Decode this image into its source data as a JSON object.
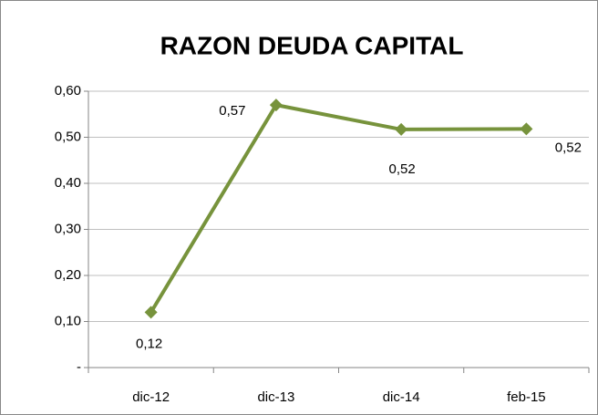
{
  "chart_data": {
    "type": "line",
    "title": "RAZON DEUDA CAPITAL",
    "categories": [
      "dic-12",
      "dic-13",
      "dic-14",
      "feb-15"
    ],
    "values": [
      0.12,
      0.57,
      0.517,
      0.518
    ],
    "value_labels": [
      "0,12",
      "0,57",
      "0,52",
      "0,52"
    ],
    "color": "#77933c",
    "ylim": [
      0,
      0.6
    ],
    "yticks": [
      {
        "value": 0,
        "label": "-"
      },
      {
        "value": 0.1,
        "label": "0,10"
      },
      {
        "value": 0.2,
        "label": "0,20"
      },
      {
        "value": 0.3,
        "label": "0,30"
      },
      {
        "value": 0.4,
        "label": "0,40"
      },
      {
        "value": 0.5,
        "label": "0,50"
      },
      {
        "value": 0.6,
        "label": "0,60"
      }
    ],
    "grid": true
  }
}
